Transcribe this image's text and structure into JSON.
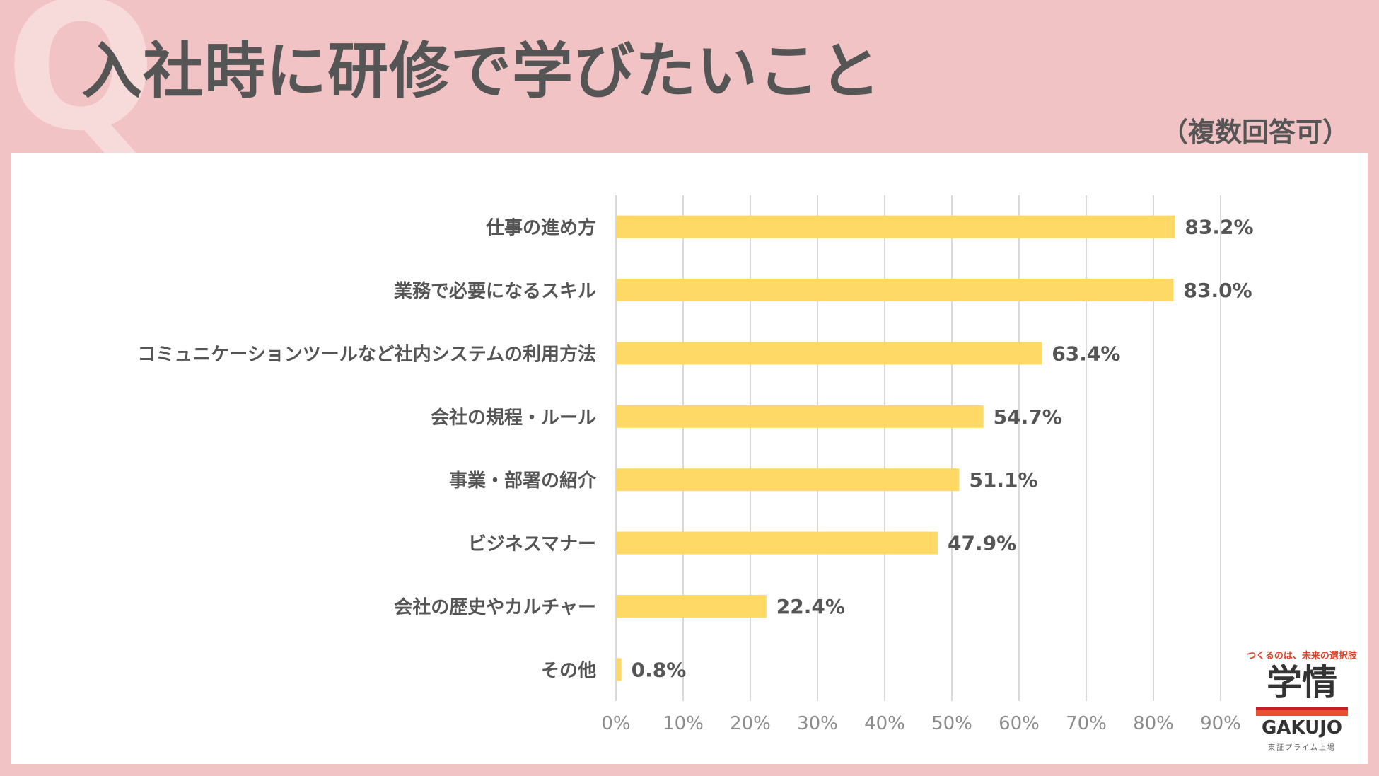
{
  "header": {
    "q_letter": "Q",
    "title": "入社時に研修で学びたいこと",
    "note": "（複数回答可）"
  },
  "colors": {
    "background": "#f2c3c4",
    "bar": "#ffd966",
    "text": "#555555",
    "grid": "#d9d9d9",
    "axis_text": "#8c8c8c"
  },
  "chart_data": {
    "type": "bar",
    "orientation": "horizontal",
    "title": "入社時に研修で学びたいこと",
    "categories": [
      "仕事の進め方",
      "業務で必要になるスキル",
      "コミュニケーションツールなど社内システムの利用方法",
      "会社の規程・ルール",
      "事業・部署の紹介",
      "ビジネスマナー",
      "会社の歴史やカルチャー",
      "その他"
    ],
    "values": [
      83.2,
      83.0,
      63.4,
      54.7,
      51.1,
      47.9,
      22.4,
      0.8
    ],
    "value_labels": [
      "83.2%",
      "83.0%",
      "63.4%",
      "54.7%",
      "51.1%",
      "47.9%",
      "22.4%",
      "0.8%"
    ],
    "xlim": [
      0,
      90
    ],
    "xticks": [
      "0%",
      "10%",
      "20%",
      "30%",
      "40%",
      "50%",
      "60%",
      "70%",
      "80%",
      "90%"
    ],
    "xlabel": "",
    "ylabel": "",
    "grid": true
  },
  "logo": {
    "tagline": "つくるのは、未来の選択肢",
    "kanji": "学情",
    "brand": "GAKUJO",
    "sub": "東証プライム上場"
  }
}
